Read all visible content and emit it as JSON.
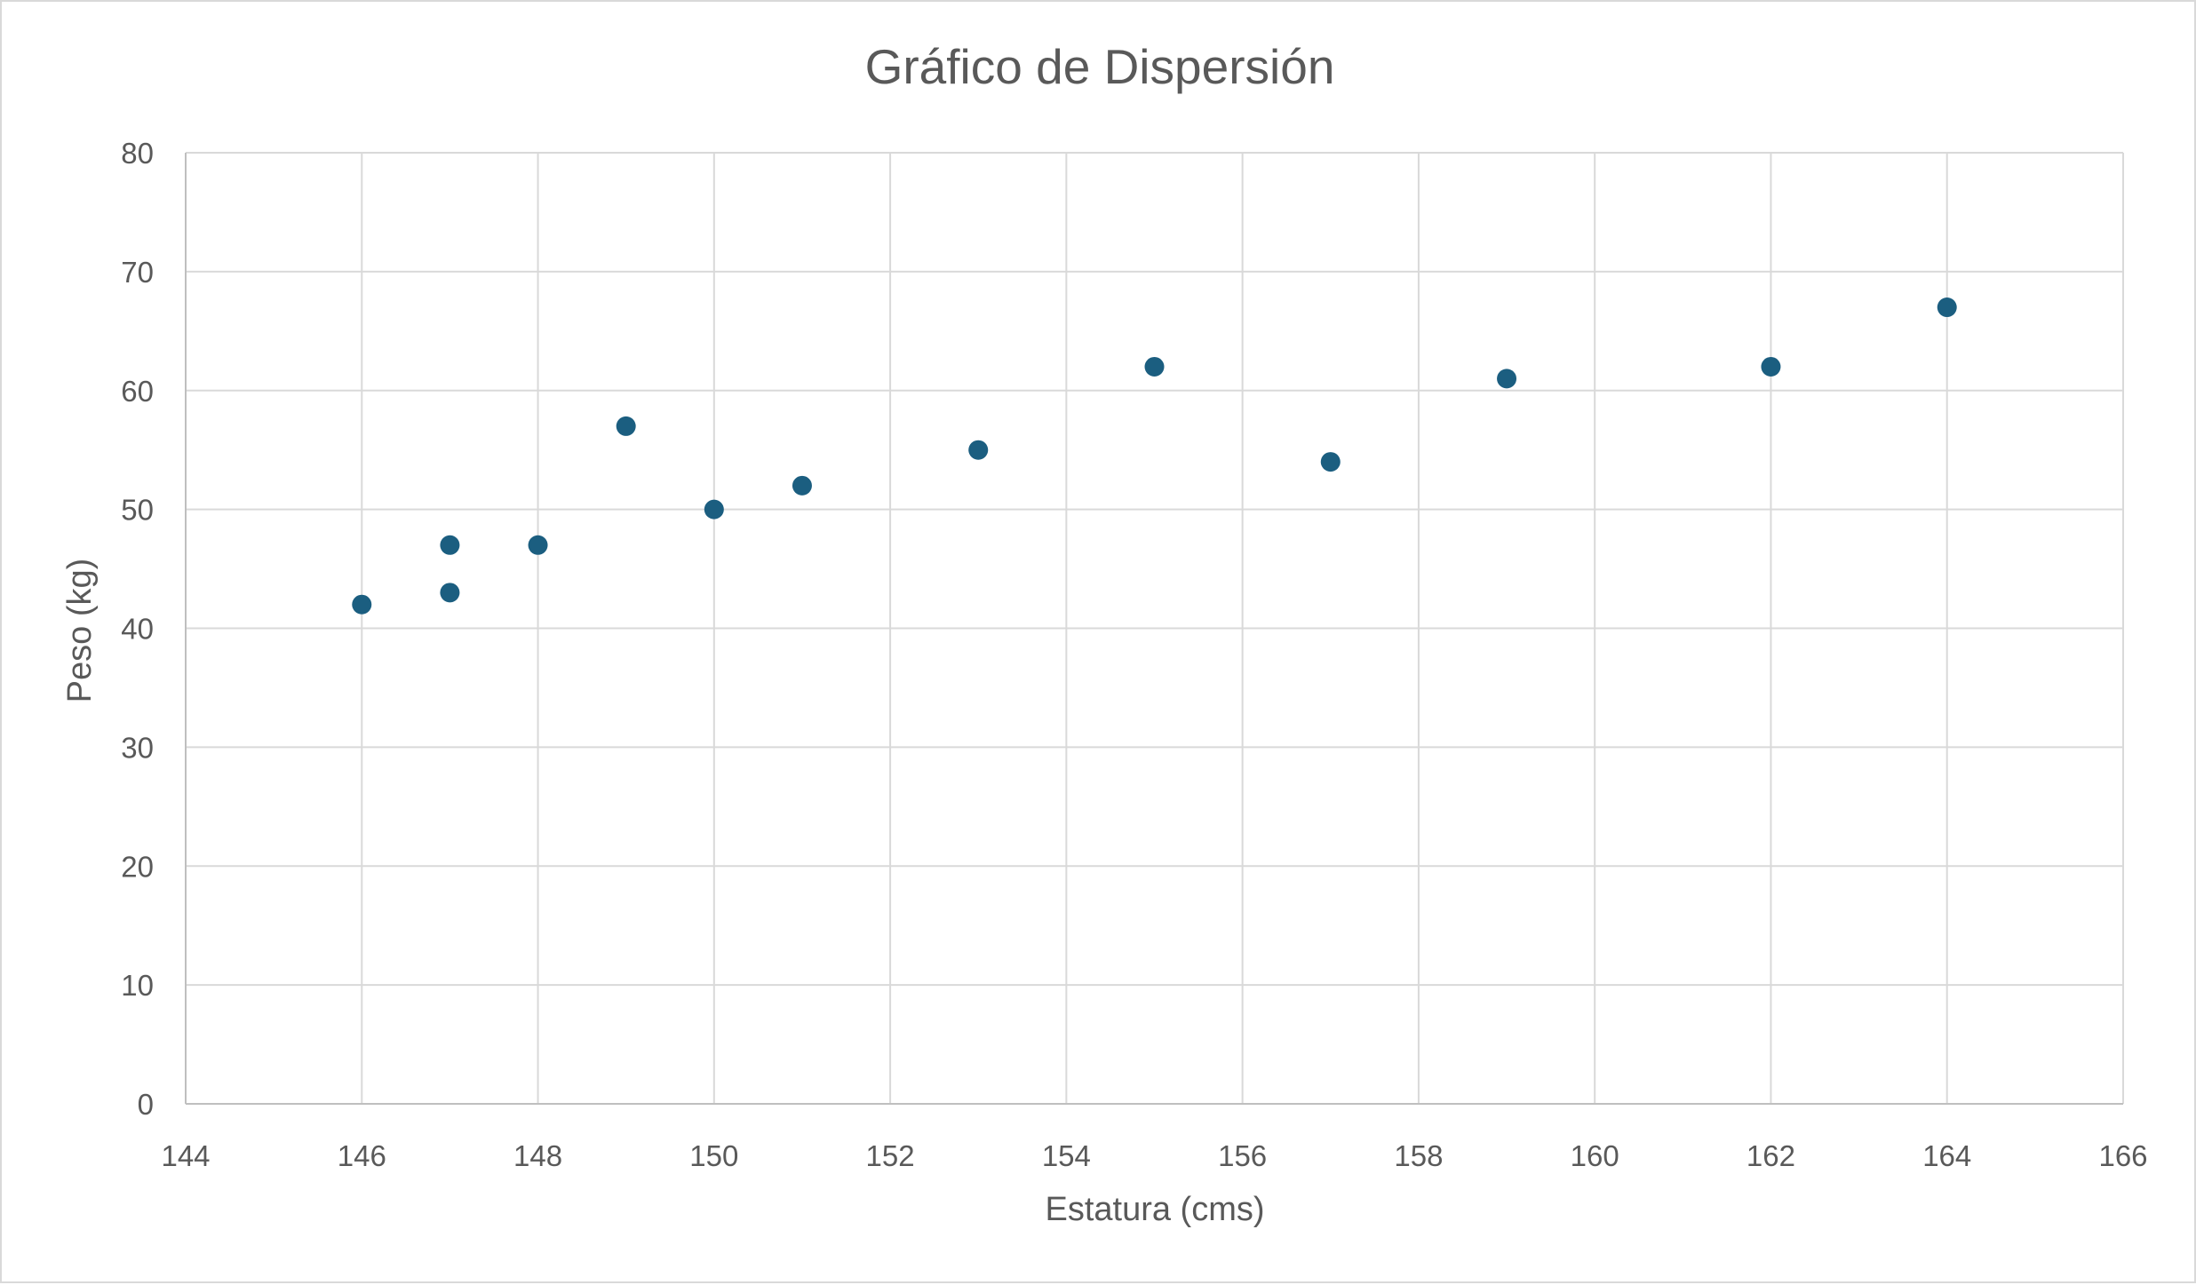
{
  "chart_data": {
    "type": "scatter",
    "title": "Gráfico de Dispersión",
    "xlabel": "Estatura (cms)",
    "ylabel": "Peso (kg)",
    "xlim": [
      144,
      166
    ],
    "ylim": [
      0,
      80
    ],
    "x_ticks": [
      144,
      146,
      148,
      150,
      152,
      154,
      156,
      158,
      160,
      162,
      164,
      166
    ],
    "y_ticks": [
      0,
      10,
      20,
      30,
      40,
      50,
      60,
      70,
      80
    ],
    "grid": true,
    "legend": "none",
    "marker_color": "#1b5e80",
    "gridline_color": "#d9d9d9",
    "text_color": "#595959",
    "series": [
      {
        "points": [
          {
            "x": 146,
            "y": 42
          },
          {
            "x": 147,
            "y": 47
          },
          {
            "x": 147,
            "y": 43
          },
          {
            "x": 148,
            "y": 47
          },
          {
            "x": 149,
            "y": 57
          },
          {
            "x": 150,
            "y": 50
          },
          {
            "x": 151,
            "y": 52
          },
          {
            "x": 153,
            "y": 55
          },
          {
            "x": 155,
            "y": 62
          },
          {
            "x": 157,
            "y": 54
          },
          {
            "x": 159,
            "y": 61
          },
          {
            "x": 162,
            "y": 62
          },
          {
            "x": 164,
            "y": 67
          }
        ]
      }
    ]
  }
}
